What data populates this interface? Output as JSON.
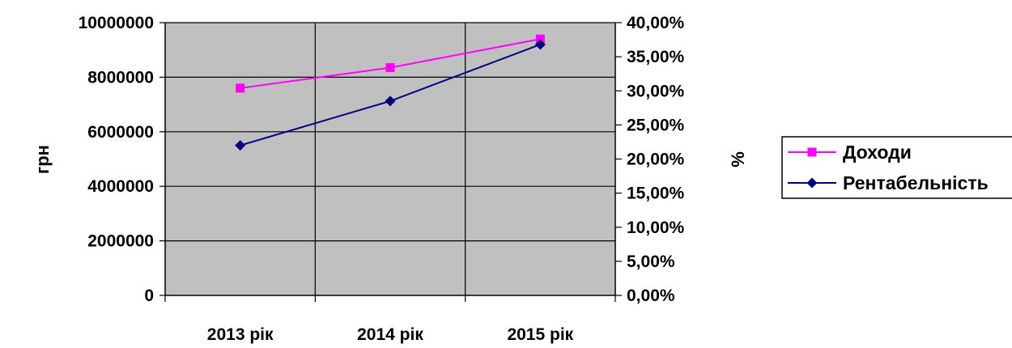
{
  "chart_data": {
    "type": "line",
    "categories": [
      "2013 рік",
      "2014 рік",
      "2015 рік"
    ],
    "series": [
      {
        "name": "Доходи",
        "axis": "left",
        "color": "#ff00ff",
        "marker": "square",
        "values": [
          7600000,
          8350000,
          9400000
        ]
      },
      {
        "name": "Рентабельність",
        "axis": "right",
        "color": "#000080",
        "marker": "diamond",
        "values": [
          0.22,
          0.285,
          0.368
        ]
      }
    ],
    "y_left": {
      "label": "грн",
      "range": [
        0,
        10000000
      ],
      "ticks": [
        "0",
        "2000000",
        "4000000",
        "6000000",
        "8000000",
        "10000000"
      ]
    },
    "y_right": {
      "label": "%",
      "range": [
        0,
        0.4
      ],
      "ticks": [
        "0,00%",
        "5,00%",
        "10,00%",
        "15,00%",
        "20,00%",
        "25,00%",
        "30,00%",
        "35,00%",
        "40,00%"
      ]
    },
    "plot_background": "#c0c0c0",
    "grid": true,
    "legend_position": "right"
  }
}
